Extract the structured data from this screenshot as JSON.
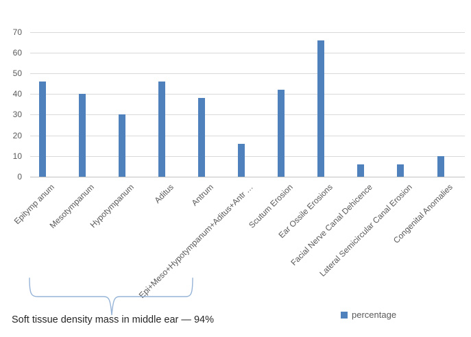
{
  "chart_data": {
    "type": "bar",
    "title": "",
    "xlabel": "",
    "ylabel": "",
    "categories": [
      "Epitymp anum",
      "Mesotympanum",
      "Hypotympanum",
      "Aditus",
      "Antrum",
      "Epi+Meso+Hypotympanum+Aditus+Antr …",
      "Scutum Erosion",
      "Ear Ossile Erosions",
      "Facial Nerve Canal Dehicence",
      "Lateral Semicircular Canal Erosion",
      "Congenital Anomalies"
    ],
    "series": [
      {
        "name": "percentage",
        "values": [
          46,
          40,
          30,
          46,
          38,
          16,
          42,
          66,
          6,
          6,
          10
        ]
      }
    ],
    "ylim": [
      0,
      70
    ],
    "yticks": [
      0,
      10,
      20,
      30,
      40,
      50,
      60,
      70
    ],
    "grid": true,
    "legend_position": "bottom-right",
    "bar_color": "#4f81bd",
    "gridline_color": "#d9d9d9",
    "tick_label_color": "#595959"
  },
  "legend": {
    "label": "percentage",
    "swatch_color": "#4f81bd"
  },
  "annotation": {
    "text": "Soft tissue density mass in middle ear — 94%",
    "brace_color": "#95b3d7",
    "brace_groups_categories": [
      0,
      1,
      2,
      3,
      4
    ]
  }
}
